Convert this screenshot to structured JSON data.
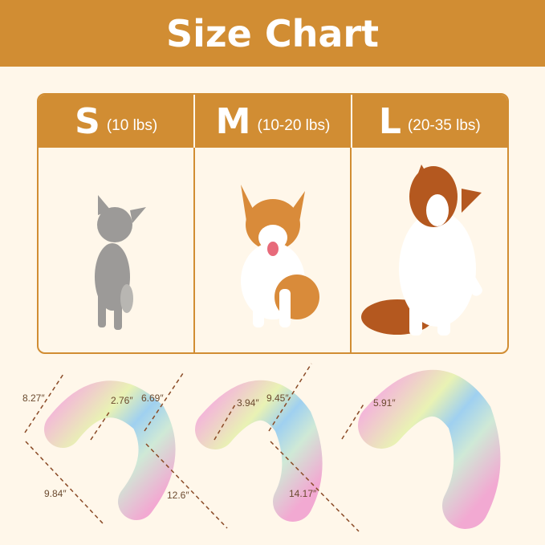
{
  "title": "Size Chart",
  "accent": "#d18d33",
  "sizes": [
    {
      "letter": "S",
      "weight": "(10 lbs)",
      "animal": "kitten"
    },
    {
      "letter": "M",
      "weight": "(10-20 lbs)",
      "animal": "corgi"
    },
    {
      "letter": "L",
      "weight": "(20-35 lbs)",
      "animal": "border-collie"
    }
  ],
  "pillows": [
    {
      "height": "8.27″",
      "width": "2.76″",
      "length": "9.84″"
    },
    {
      "height": "6.69″",
      "width": "3.94″",
      "length": "12.6″"
    },
    {
      "height": "9.45″",
      "width": "5.91″",
      "length": "14.17″"
    }
  ]
}
